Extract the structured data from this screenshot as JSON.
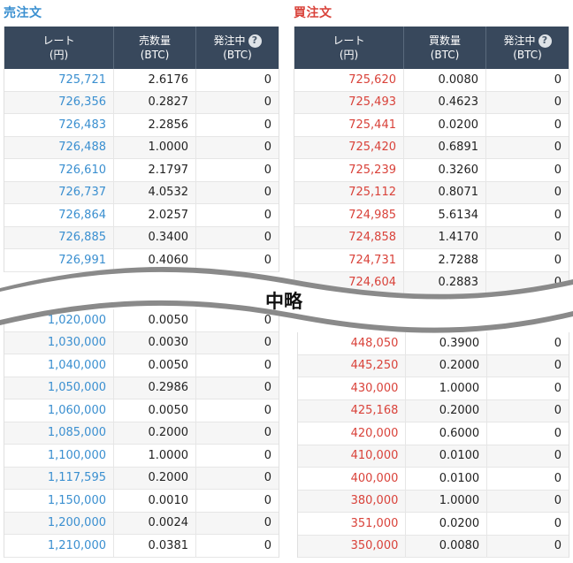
{
  "sell": {
    "title": "売注文",
    "headers": {
      "rate": [
        "レート",
        "(円)"
      ],
      "qty": [
        "売数量",
        "(BTC)"
      ],
      "pending": [
        "発注中",
        "(BTC)"
      ]
    },
    "help_icon": "?",
    "top_rows": [
      [
        "725,721",
        "2.6176",
        "0"
      ],
      [
        "726,356",
        "0.2827",
        "0"
      ],
      [
        "726,483",
        "2.2856",
        "0"
      ],
      [
        "726,488",
        "1.0000",
        "0"
      ],
      [
        "726,610",
        "2.1797",
        "0"
      ],
      [
        "726,737",
        "4.0532",
        "0"
      ],
      [
        "726,864",
        "2.0257",
        "0"
      ],
      [
        "726,885",
        "0.3400",
        "0"
      ],
      [
        "726,991",
        "0.4060",
        "0"
      ]
    ],
    "bottom_rows": [
      [
        "1,020,000",
        "0.0050",
        "0"
      ],
      [
        "1,030,000",
        "0.0030",
        "0"
      ],
      [
        "1,040,000",
        "0.0050",
        "0"
      ],
      [
        "1,050,000",
        "0.2986",
        "0"
      ],
      [
        "1,060,000",
        "0.0050",
        "0"
      ],
      [
        "1,085,000",
        "0.2000",
        "0"
      ],
      [
        "1,100,000",
        "1.0000",
        "0"
      ],
      [
        "1,117,595",
        "0.2000",
        "0"
      ],
      [
        "1,150,000",
        "0.0010",
        "0"
      ],
      [
        "1,200,000",
        "0.0024",
        "0"
      ],
      [
        "1,210,000",
        "0.0381",
        "0"
      ]
    ]
  },
  "buy": {
    "title": "買注文",
    "headers": {
      "rate": [
        "レート",
        "(円)"
      ],
      "qty": [
        "買数量",
        "(BTC)"
      ],
      "pending": [
        "発注中",
        "(BTC)"
      ]
    },
    "help_icon": "?",
    "top_rows": [
      [
        "725,620",
        "0.0080",
        "0"
      ],
      [
        "725,493",
        "0.4623",
        "0"
      ],
      [
        "725,441",
        "0.0200",
        "0"
      ],
      [
        "725,420",
        "0.6891",
        "0"
      ],
      [
        "725,239",
        "0.3260",
        "0"
      ],
      [
        "725,112",
        "0.8071",
        "0"
      ],
      [
        "724,985",
        "5.6134",
        "0"
      ],
      [
        "724,858",
        "1.4170",
        "0"
      ],
      [
        "724,731",
        "2.7288",
        "0"
      ],
      [
        "724,604",
        "0.2883",
        "0"
      ]
    ],
    "bottom_rows": [
      [
        "448,050",
        "0.3900",
        "0"
      ],
      [
        "445,250",
        "0.2000",
        "0"
      ],
      [
        "430,000",
        "1.0000",
        "0"
      ],
      [
        "425,168",
        "0.2000",
        "0"
      ],
      [
        "420,000",
        "0.6000",
        "0"
      ],
      [
        "410,000",
        "0.0100",
        "0"
      ],
      [
        "400,000",
        "0.0100",
        "0"
      ],
      [
        "380,000",
        "1.0000",
        "0"
      ],
      [
        "351,000",
        "0.0200",
        "0"
      ],
      [
        "350,000",
        "0.0080",
        "0"
      ]
    ]
  },
  "omission_label": "中略"
}
